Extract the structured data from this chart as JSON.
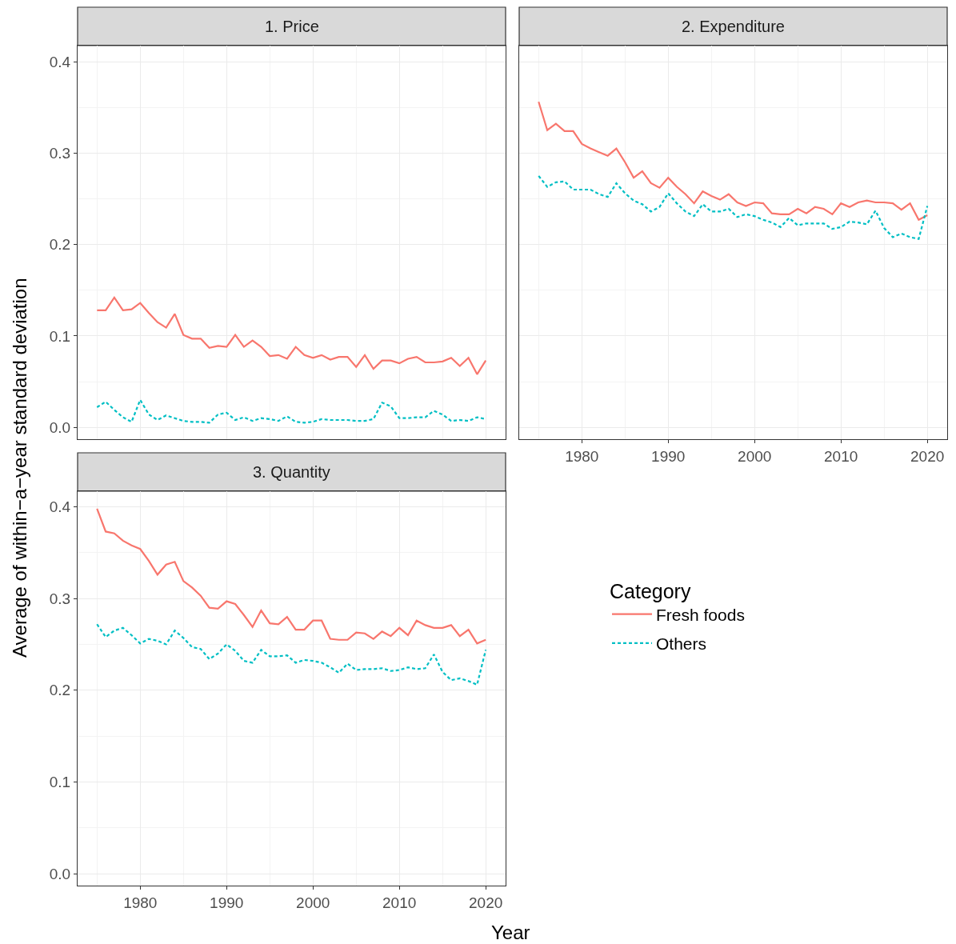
{
  "chart_data": [
    {
      "type": "line",
      "title": "1. Price",
      "ylabel": "Average of within−a−year standard deviation",
      "legend_title": "Category",
      "legend": "right",
      "grid": true,
      "tick_labels": "y",
      "x": [
        1975,
        1976,
        1977,
        1978,
        1979,
        1980,
        1981,
        1982,
        1983,
        1984,
        1985,
        1986,
        1987,
        1988,
        1989,
        1990,
        1991,
        1992,
        1993,
        1994,
        1995,
        1996,
        1997,
        1998,
        1999,
        2000,
        2001,
        2002,
        2003,
        2004,
        2005,
        2006,
        2007,
        2008,
        2009,
        2010,
        2011,
        2012,
        2013,
        2014,
        2015,
        2016,
        2017,
        2018,
        2019,
        2020
      ],
      "xlim": [
        1972.75,
        2022.3
      ],
      "xticks": [
        1980,
        1990,
        2000,
        2010,
        2020
      ],
      "ylim": [
        -0.013,
        0.4175
      ],
      "yticks": [
        {
          "value": 0,
          "label": "0.0"
        },
        0.1,
        0.2,
        0.3,
        0.4
      ],
      "series": [
        {
          "name": "Fresh foods",
          "color": "#f8766d",
          "line_style": "solid",
          "values": [
            0.128,
            0.128,
            0.142,
            0.128,
            0.129,
            0.136,
            0.125,
            0.115,
            0.109,
            0.124,
            0.101,
            0.097,
            0.097,
            0.087,
            0.089,
            0.088,
            0.101,
            0.088,
            0.095,
            0.088,
            0.078,
            0.079,
            0.075,
            0.088,
            0.079,
            0.076,
            0.079,
            0.074,
            0.077,
            0.077,
            0.066,
            0.079,
            0.064,
            0.073,
            0.073,
            0.07,
            0.075,
            0.077,
            0.071,
            0.071,
            0.072,
            0.076,
            0.067,
            0.076,
            0.058,
            0.073
          ]
        },
        {
          "name": "Others",
          "color": "#00bfc4",
          "line_style": "dashed",
          "values": [
            0.022,
            0.028,
            0.019,
            0.011,
            0.006,
            0.03,
            0.014,
            0.008,
            0.013,
            0.01,
            0.007,
            0.006,
            0.006,
            0.005,
            0.014,
            0.016,
            0.008,
            0.011,
            0.007,
            0.01,
            0.009,
            0.007,
            0.012,
            0.006,
            0.005,
            0.006,
            0.009,
            0.008,
            0.008,
            0.008,
            0.007,
            0.007,
            0.009,
            0.027,
            0.023,
            0.01,
            0.01,
            0.011,
            0.011,
            0.018,
            0.014,
            0.007,
            0.008,
            0.007,
            0.011,
            0.009
          ]
        }
      ]
    },
    {
      "type": "line",
      "title": "2. Expenditure",
      "legend": "right",
      "grid": true,
      "tick_labels": "x",
      "x": [
        1975,
        1976,
        1977,
        1978,
        1979,
        1980,
        1981,
        1982,
        1983,
        1984,
        1985,
        1986,
        1987,
        1988,
        1989,
        1990,
        1991,
        1992,
        1993,
        1994,
        1995,
        1996,
        1997,
        1998,
        1999,
        2000,
        2001,
        2002,
        2003,
        2004,
        2005,
        2006,
        2007,
        2008,
        2009,
        2010,
        2011,
        2012,
        2013,
        2014,
        2015,
        2016,
        2017,
        2018,
        2019,
        2020
      ],
      "xlim": [
        1972.75,
        2022.3
      ],
      "xticks": [
        1980,
        1990,
        2000,
        2010,
        2020
      ],
      "ylim": [
        -0.013,
        0.4175
      ],
      "yticks": [
        0.0,
        0.1,
        0.2,
        0.3,
        0.4
      ],
      "series": [
        {
          "name": "Fresh foods",
          "color": "#f8766d",
          "line_style": "solid",
          "values": [
            0.356,
            0.325,
            0.332,
            0.324,
            0.324,
            0.31,
            0.305,
            0.301,
            0.297,
            0.305,
            0.29,
            0.273,
            0.28,
            0.267,
            0.262,
            0.273,
            0.263,
            0.255,
            0.245,
            0.258,
            0.253,
            0.249,
            0.255,
            0.246,
            0.242,
            0.246,
            0.245,
            0.234,
            0.233,
            0.233,
            0.239,
            0.234,
            0.241,
            0.239,
            0.233,
            0.245,
            0.241,
            0.246,
            0.248,
            0.246,
            0.246,
            0.245,
            0.238,
            0.245,
            0.227,
            0.232
          ]
        },
        {
          "name": "Others",
          "color": "#00bfc4",
          "line_style": "dashed",
          "values": [
            0.275,
            0.263,
            0.268,
            0.269,
            0.26,
            0.26,
            0.26,
            0.255,
            0.252,
            0.267,
            0.256,
            0.248,
            0.244,
            0.236,
            0.241,
            0.256,
            0.245,
            0.236,
            0.231,
            0.244,
            0.236,
            0.236,
            0.239,
            0.23,
            0.233,
            0.231,
            0.227,
            0.224,
            0.219,
            0.229,
            0.221,
            0.223,
            0.223,
            0.223,
            0.217,
            0.219,
            0.225,
            0.224,
            0.222,
            0.237,
            0.218,
            0.208,
            0.212,
            0.208,
            0.206,
            0.242
          ]
        }
      ]
    },
    {
      "type": "line",
      "title": "3. Quantity",
      "xlabel": "Year",
      "legend": "right",
      "grid": true,
      "x": [
        1975,
        1976,
        1977,
        1978,
        1979,
        1980,
        1981,
        1982,
        1983,
        1984,
        1985,
        1986,
        1987,
        1988,
        1989,
        1990,
        1991,
        1992,
        1993,
        1994,
        1995,
        1996,
        1997,
        1998,
        1999,
        2000,
        2001,
        2002,
        2003,
        2004,
        2005,
        2006,
        2007,
        2008,
        2009,
        2010,
        2011,
        2012,
        2013,
        2014,
        2015,
        2016,
        2017,
        2018,
        2019,
        2020
      ],
      "xlim": [
        1972.75,
        2022.3
      ],
      "xticks": [
        1980,
        1990,
        2000,
        2010,
        2020
      ],
      "ylim": [
        -0.013,
        0.417
      ],
      "yticks": [
        {
          "value": 0,
          "label": "0.0"
        },
        0.1,
        0.2,
        0.3,
        0.4
      ],
      "series": [
        {
          "name": "Fresh foods",
          "color": "#f8766d",
          "line_style": "solid",
          "values": [
            0.398,
            0.373,
            0.371,
            0.363,
            0.358,
            0.354,
            0.341,
            0.326,
            0.337,
            0.34,
            0.319,
            0.312,
            0.303,
            0.29,
            0.289,
            0.297,
            0.294,
            0.282,
            0.269,
            0.287,
            0.273,
            0.272,
            0.28,
            0.266,
            0.266,
            0.276,
            0.276,
            0.256,
            0.255,
            0.255,
            0.263,
            0.262,
            0.256,
            0.264,
            0.259,
            0.268,
            0.26,
            0.276,
            0.271,
            0.268,
            0.268,
            0.271,
            0.259,
            0.266,
            0.251,
            0.255
          ]
        },
        {
          "name": "Others",
          "color": "#00bfc4",
          "line_style": "dashed",
          "values": [
            0.272,
            0.258,
            0.265,
            0.268,
            0.26,
            0.251,
            0.256,
            0.254,
            0.25,
            0.265,
            0.257,
            0.247,
            0.245,
            0.234,
            0.24,
            0.25,
            0.243,
            0.232,
            0.23,
            0.244,
            0.237,
            0.237,
            0.238,
            0.23,
            0.233,
            0.232,
            0.23,
            0.225,
            0.219,
            0.229,
            0.222,
            0.223,
            0.223,
            0.224,
            0.221,
            0.222,
            0.225,
            0.223,
            0.224,
            0.239,
            0.22,
            0.211,
            0.213,
            0.21,
            0.206,
            0.244
          ]
        }
      ]
    }
  ]
}
